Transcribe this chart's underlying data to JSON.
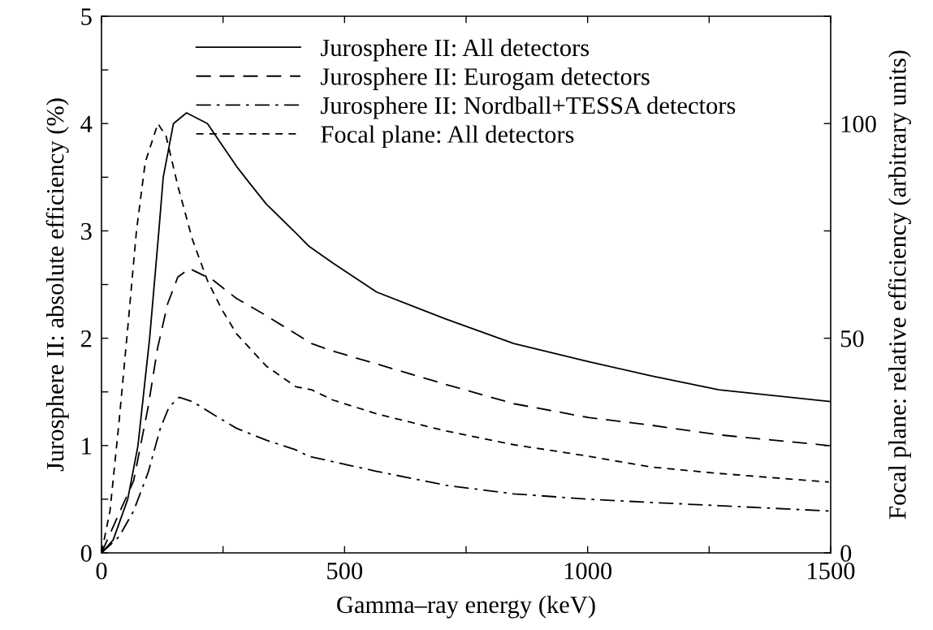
{
  "chart_data": {
    "type": "line",
    "xlabel": "Gamma–ray energy (keV)",
    "ylabel": "Jurosphere II: absolute efficiency (%)",
    "y2label": "Focal plane: relative efficiency (arbitrary units)",
    "xlim": [
      0,
      1500
    ],
    "xticks": [
      0,
      {
        "value": 250,
        "label": null
      },
      500,
      {
        "value": 750,
        "label": null
      },
      1000,
      {
        "value": 1250,
        "label": null
      },
      1500
    ],
    "ylim": [
      0,
      5
    ],
    "yticks": [
      0,
      {
        "value": 0.5,
        "label": null
      },
      1,
      {
        "value": 1.5,
        "label": null
      },
      2,
      {
        "value": 2.5,
        "label": null
      },
      3,
      {
        "value": 3.5,
        "label": null
      },
      4,
      {
        "value": 4.5,
        "label": null
      },
      5
    ],
    "y2lim": [
      0,
      125
    ],
    "y2ticks": [
      0,
      {
        "value": 25,
        "label": null
      },
      50,
      {
        "value": 75,
        "label": null
      },
      100,
      {
        "value": 125,
        "label": null
      }
    ],
    "legend": "top",
    "grid": false,
    "series": [
      {
        "name": "Jurosphere II: All detectors",
        "color": "#000000",
        "line_style": "solid",
        "x": [
          0,
          24,
          54,
          75,
          99,
          118,
          127,
          148,
          175,
          218,
          248,
          278,
          309,
          339,
          400,
          426,
          476,
          566,
          708,
          848,
          1003,
          1130,
          1270,
          1500
        ],
        "values": [
          0,
          0.12,
          0.5,
          1.0,
          2.0,
          3.0,
          3.5,
          4.0,
          4.1,
          4.0,
          3.8,
          3.6,
          3.42,
          3.25,
          2.98,
          2.86,
          2.7,
          2.43,
          2.18,
          1.95,
          1.78,
          1.65,
          1.52,
          1.41
        ]
      },
      {
        "name": "Jurosphere II: Eurogam detectors",
        "color": "#000000",
        "line_style": "longdash",
        "x": [
          0,
          66,
          96,
          115,
          136,
          157,
          181,
          230,
          278,
          339,
          400,
          432,
          476,
          566,
          708,
          848,
          1003,
          1130,
          1270,
          1496
        ],
        "values": [
          0,
          0.67,
          1.36,
          1.9,
          2.32,
          2.57,
          2.65,
          2.54,
          2.37,
          2.21,
          2.04,
          1.95,
          1.88,
          1.76,
          1.57,
          1.39,
          1.26,
          1.19,
          1.1,
          1.0
        ]
      },
      {
        "name": "Jurosphere II: Nordball+TESSA detectors",
        "color": "#000000",
        "line_style": "dashdot",
        "x": [
          0,
          36,
          66,
          96,
          121,
          139,
          160,
          187,
          230,
          278,
          339,
          400,
          426,
          476,
          566,
          708,
          848,
          1003,
          1130,
          1270,
          1496
        ],
        "values": [
          0,
          0.15,
          0.39,
          0.75,
          1.16,
          1.36,
          1.45,
          1.41,
          1.29,
          1.16,
          1.05,
          0.96,
          0.9,
          0.85,
          0.76,
          0.63,
          0.55,
          0.5,
          0.47,
          0.44,
          0.39
        ]
      },
      {
        "name": "Focal plane: All detectors",
        "color": "#000000",
        "line_style": "dashed",
        "axis": "y2",
        "x": [
          0,
          17.5,
          36,
          54,
          72,
          90,
          116,
          133,
          157,
          187,
          218,
          248,
          278,
          339,
          400,
          432,
          476,
          566,
          708,
          848,
          1003,
          1130,
          1270,
          1496
        ],
        "values": [
          0,
          9.8,
          30.4,
          52.4,
          75.1,
          91,
          100,
          97,
          85.5,
          73,
          63.4,
          56.6,
          51,
          43.5,
          38.7,
          38,
          35.6,
          32.4,
          28.4,
          25.2,
          22.5,
          20,
          18.5,
          16.5
        ]
      }
    ]
  }
}
